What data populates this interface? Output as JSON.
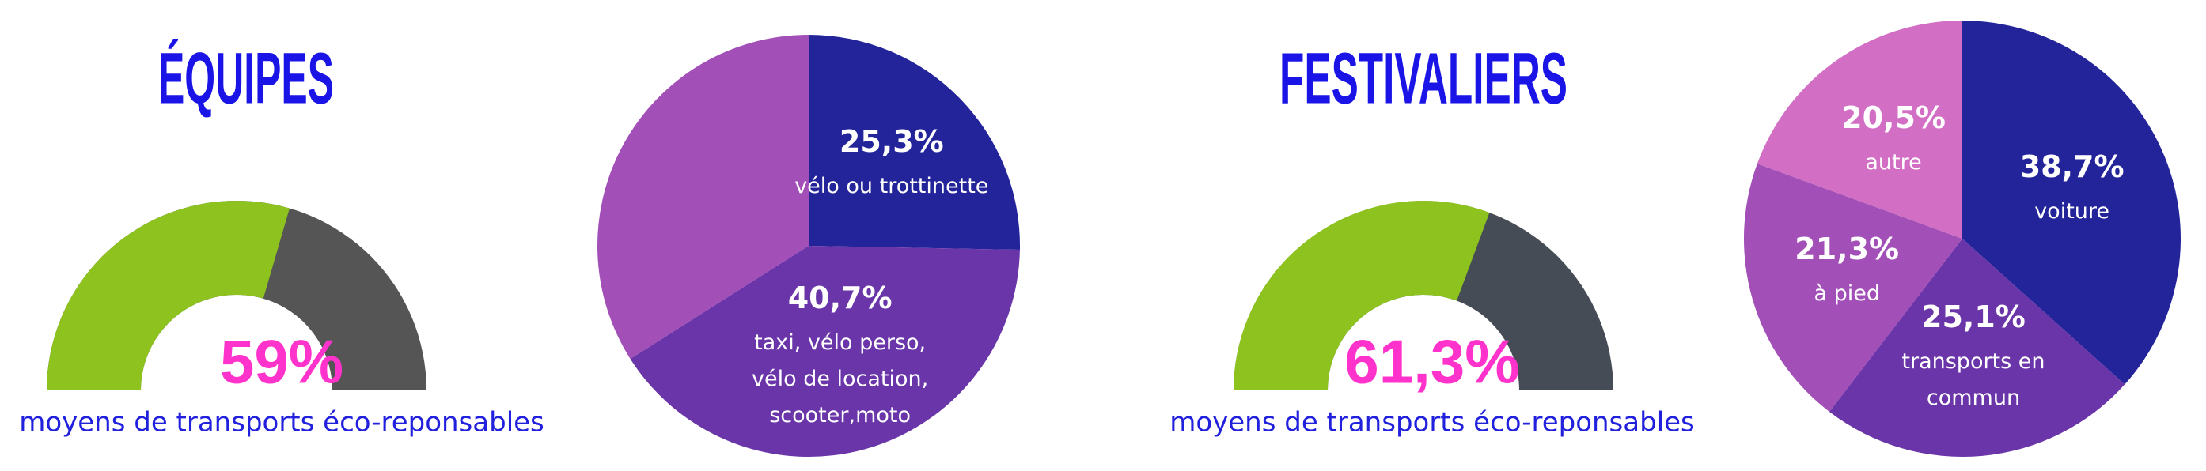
{
  "chart_data": [
    {
      "type": "gauge",
      "title": "ÉQUIPES",
      "value": 59,
      "value_label": "59%",
      "ylim": [
        0,
        100
      ],
      "subtitle": "moyens de transports éco-reponsables",
      "color": "#8dc21f",
      "track_color": "#555555"
    },
    {
      "type": "pie",
      "categories": [
        "vélo ou trottinette",
        "taxi, vélo perso, vélo de location, scooter,moto",
        null
      ],
      "values": [
        25.3,
        40.7,
        34
      ],
      "value_labels": [
        "25,3%",
        "40,7%",
        null
      ],
      "colors": [
        "#23239a",
        "#6a35a8",
        "#a24fb8"
      ]
    },
    {
      "type": "gauge",
      "title": "FESTIVALIERS",
      "value": 61.3,
      "value_label": "61,3%",
      "ylim": [
        0,
        100
      ],
      "subtitle": "moyens de transports éco-reponsables",
      "color": "#8dc21f",
      "track_color": "#464c55"
    },
    {
      "type": "pie",
      "categories": [
        "voiture",
        "transports en commun",
        "à pied",
        "autre"
      ],
      "values": [
        38.7,
        25.1,
        21.3,
        20.5
      ],
      "value_labels": [
        "38,7%",
        "25,1%",
        "21,3%",
        "20,5%"
      ],
      "colors": [
        "#23239a",
        "#6a35a8",
        "#a24fb8",
        "#d26ec4"
      ]
    }
  ]
}
